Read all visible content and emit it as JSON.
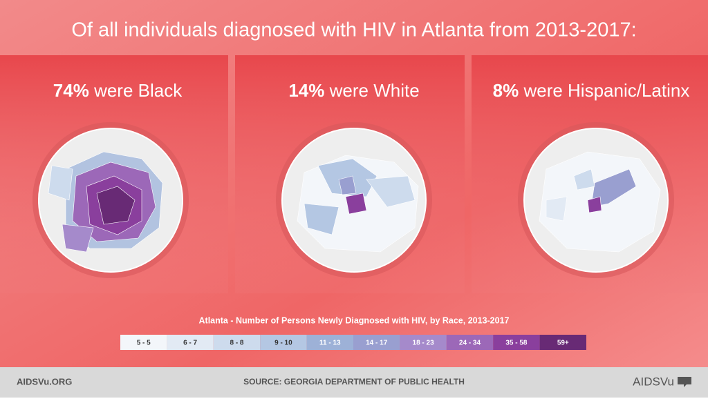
{
  "header": {
    "title": "Of all individuals diagnosed with HIV in Atlanta from 2013-2017:"
  },
  "panels": [
    {
      "percent": "74%",
      "label": "were Black"
    },
    {
      "percent": "14%",
      "label": "were White"
    },
    {
      "percent": "8%",
      "label": "were Hispanic/Latinx"
    }
  ],
  "legend": {
    "title": "Atlanta - Number of Persons Newly Diagnosed with HIV, by Race, 2013-2017",
    "bins": [
      {
        "label": "5 - 5",
        "color": "#f3f6fa"
      },
      {
        "label": "6 - 7",
        "color": "#e2eaf4"
      },
      {
        "label": "8 - 8",
        "color": "#cddbed"
      },
      {
        "label": "9 - 10",
        "color": "#b4c7e3"
      },
      {
        "label": "11 - 13",
        "color": "#9db1d7"
      },
      {
        "label": "14 - 17",
        "color": "#999fd0"
      },
      {
        "label": "18 - 23",
        "color": "#a58acb"
      },
      {
        "label": "24 - 34",
        "color": "#9c68b8"
      },
      {
        "label": "35 - 58",
        "color": "#8a3f9d"
      },
      {
        "label": "59+",
        "color": "#682a75"
      }
    ]
  },
  "footer": {
    "site": "AIDSVu.ORG",
    "source": "SOURCE: GEORGIA DEPARTMENT OF PUBLIC HEALTH",
    "logo": "AIDSVu"
  }
}
